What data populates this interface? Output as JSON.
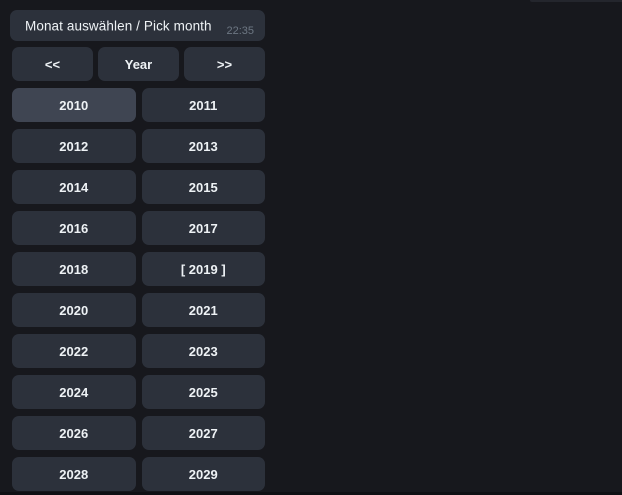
{
  "colors": {
    "background": "#17181d",
    "bubble": "#2c313b",
    "button": "#2c313b",
    "button_highlighted": "#3f4552",
    "text": "#eef2f5",
    "timestamp": "#6d7783"
  },
  "message": {
    "text": "Monat auswählen / Pick month",
    "timestamp": "22:35"
  },
  "keyboard": {
    "nav": [
      {
        "label": "<<"
      },
      {
        "label": "Year"
      },
      {
        "label": ">>"
      }
    ],
    "years": [
      "2010",
      "2011",
      "2012",
      "2013",
      "2014",
      "2015",
      "2016",
      "2017",
      "2018",
      "[ 2019 ]",
      "2020",
      "2021",
      "2022",
      "2023",
      "2024",
      "2025",
      "2026",
      "2027",
      "2028",
      "2029"
    ],
    "selected_year": "2019",
    "highlighted_year": "2010"
  }
}
